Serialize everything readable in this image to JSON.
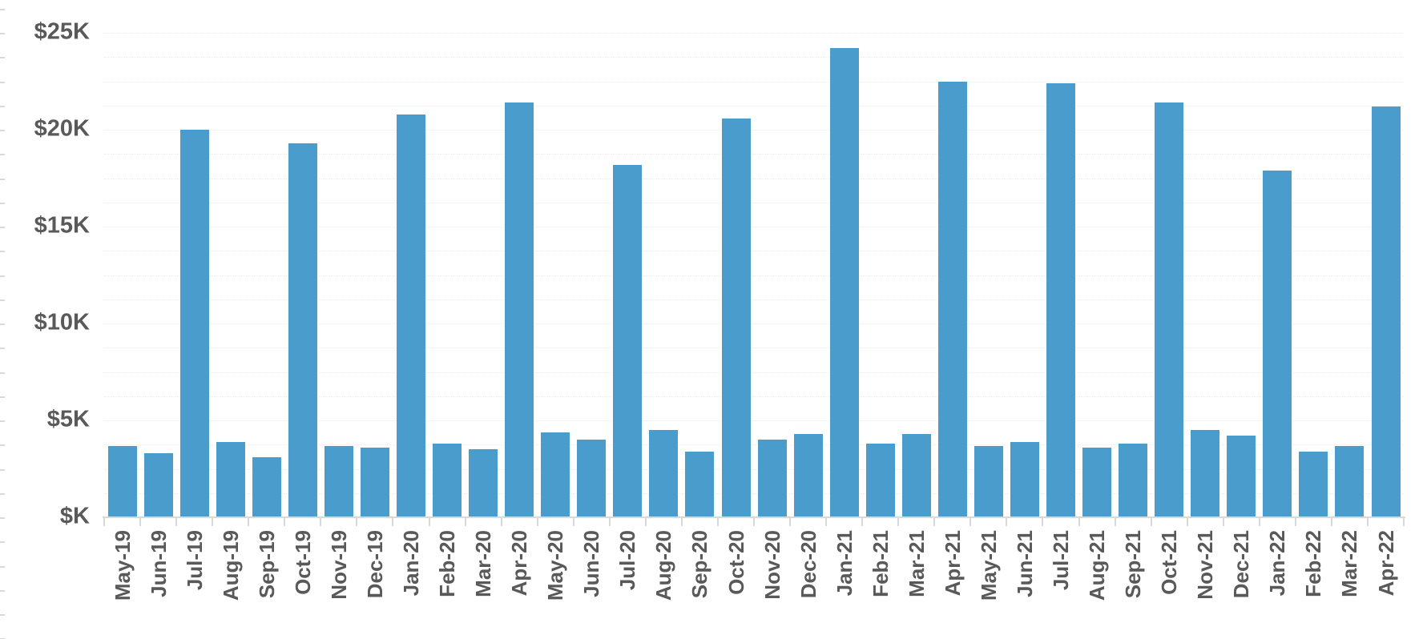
{
  "chart_data": {
    "type": "bar",
    "title": "",
    "legend": "none",
    "grid": "faint dotted horizontal minor gridlines every 1.25K",
    "unit": "$K (thousand dollars)",
    "ylim": [
      0,
      25
    ],
    "y_axis": {
      "tick_labels": [
        "$25K",
        "$20K",
        "$15K",
        "$10K",
        "$5K",
        "$K"
      ],
      "tick_values": [
        25,
        20,
        15,
        10,
        5,
        0
      ],
      "minor_tick_step": 1.25
    },
    "x_axis": {
      "label_rotation": "90deg counterclockwise, reading bottom-to-top"
    },
    "categories": [
      "May-19",
      "Jun-19",
      "Jul-19",
      "Aug-19",
      "Sep-19",
      "Oct-19",
      "Nov-19",
      "Dec-19",
      "Jan-20",
      "Feb-20",
      "Mar-20",
      "Apr-20",
      "May-20",
      "Jun-20",
      "Jul-20",
      "Aug-20",
      "Sep-20",
      "Oct-20",
      "Nov-20",
      "Dec-20",
      "Jan-21",
      "Feb-21",
      "Mar-21",
      "Apr-21",
      "May-21",
      "Jun-21",
      "Jul-21",
      "Aug-21",
      "Sep-21",
      "Oct-21",
      "Nov-21",
      "Dec-21",
      "Jan-22",
      "Feb-22",
      "Mar-22",
      "Apr-22"
    ],
    "values": [
      3.7,
      3.3,
      20.0,
      3.9,
      3.1,
      19.3,
      3.7,
      3.6,
      20.8,
      3.8,
      3.5,
      21.4,
      4.4,
      4.0,
      18.2,
      4.5,
      3.4,
      20.6,
      4.0,
      4.3,
      24.2,
      3.8,
      4.3,
      22.5,
      3.7,
      3.9,
      22.4,
      3.6,
      3.8,
      21.4,
      4.5,
      4.2,
      17.9,
      3.4,
      3.7,
      21.2
    ],
    "colors": {
      "bar": "#4a9ccc",
      "axis_and_ticks": "#d9d9d9",
      "tick_label_text": "#595959",
      "gridline": "#ebebeb",
      "background": "#ffffff"
    }
  }
}
